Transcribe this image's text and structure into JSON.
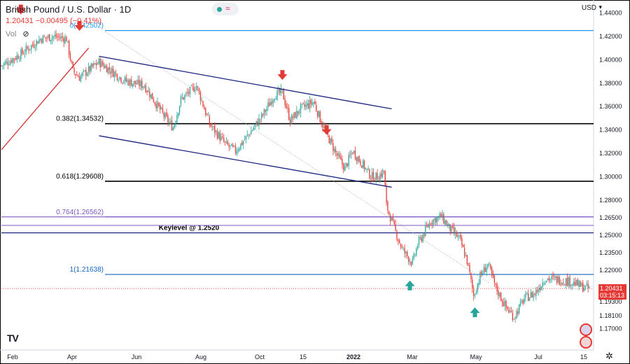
{
  "header": {
    "title": "British Pound / U.S. Dollar",
    "interval": "1D",
    "quote_line": "1.20431  −0.00495 (−0.41%)",
    "vol_label": "Vol",
    "currency": "USD"
  },
  "price_tag": {
    "price": "1.20431",
    "countdown": "03:15:13"
  },
  "logo": "TV",
  "colors": {
    "up": "#26a69a",
    "down": "#e53935",
    "fib": "#000000",
    "fib_0": "#2196f3",
    "fib_764": "#7e57c2",
    "fib_1": "#1565c0",
    "keylevel": "#1a237e",
    "channel": "#1a237e",
    "trend": "#d32f2f",
    "marker_down": "#e53935",
    "marker_up": "#26a69a"
  },
  "chart_data": {
    "type": "candlestick",
    "symbol": "GBPUSD",
    "x_ticks": [
      "Feb",
      "Apr",
      "Jun",
      "Aug",
      "Oct",
      "15",
      "2022",
      "Mar",
      "May",
      "Jul",
      "15"
    ],
    "y_ticks": [
      "1.44000",
      "1.42000",
      "1.40000",
      "1.38000",
      "1.36000",
      "1.34000",
      "1.32000",
      "1.30000",
      "1.28000",
      "1.26500",
      "1.25000",
      "1.23500",
      "1.22000",
      "1.19300",
      "1.18100",
      "1.17000"
    ],
    "levels": [
      {
        "label": "0(1.42502)",
        "price": 1.42502,
        "color_key": "fib_0"
      },
      {
        "label": "0.382(1.34532)",
        "price": 1.34532,
        "color_key": "fib"
      },
      {
        "label": "0.618(1.29608)",
        "price": 1.29608,
        "color_key": "fib"
      },
      {
        "label": "0.764(1.26562)",
        "price": 1.26562,
        "color_key": "fib_764"
      },
      {
        "label": "Keylevel @ 1.2520",
        "price": 1.252,
        "color_key": "keylevel"
      },
      {
        "label": "1(1.21638)",
        "price": 1.21638,
        "color_key": "fib_1"
      }
    ],
    "last_price": 1.20431,
    "close_path": [
      [
        0,
        1.395
      ],
      [
        15,
        1.405
      ],
      [
        30,
        1.418
      ],
      [
        40,
        1.42
      ],
      [
        50,
        1.418
      ],
      [
        55,
        1.39
      ],
      [
        60,
        1.385
      ],
      [
        75,
        1.398
      ],
      [
        95,
        1.382
      ],
      [
        110,
        1.378
      ],
      [
        125,
        1.352
      ],
      [
        132,
        1.342
      ],
      [
        138,
        1.366
      ],
      [
        150,
        1.378
      ],
      [
        160,
        1.345
      ],
      [
        172,
        1.328
      ],
      [
        180,
        1.322
      ],
      [
        190,
        1.336
      ],
      [
        200,
        1.351
      ],
      [
        210,
        1.37
      ],
      [
        216,
        1.372
      ],
      [
        222,
        1.348
      ],
      [
        230,
        1.358
      ],
      [
        240,
        1.364
      ],
      [
        248,
        1.341
      ],
      [
        252,
        1.332
      ],
      [
        258,
        1.318
      ],
      [
        264,
        1.307
      ],
      [
        270,
        1.322
      ],
      [
        278,
        1.31
      ],
      [
        284,
        1.3
      ],
      [
        290,
        1.3
      ],
      [
        294,
        1.305
      ],
      [
        296,
        1.275
      ],
      [
        302,
        1.256
      ],
      [
        308,
        1.238
      ],
      [
        316,
        1.226
      ],
      [
        320,
        1.242
      ],
      [
        330,
        1.262
      ],
      [
        338,
        1.266
      ],
      [
        345,
        1.255
      ],
      [
        352,
        1.247
      ],
      [
        358,
        1.228
      ],
      [
        363,
        1.198
      ],
      [
        368,
        1.215
      ],
      [
        374,
        1.225
      ],
      [
        380,
        1.205
      ],
      [
        388,
        1.188
      ],
      [
        394,
        1.18
      ],
      [
        402,
        1.196
      ],
      [
        410,
        1.2
      ],
      [
        418,
        1.213
      ],
      [
        428,
        1.212
      ],
      [
        438,
        1.21
      ],
      [
        446,
        1.206
      ],
      [
        452,
        1.204
      ]
    ],
    "candles_total": 453,
    "markers": [
      {
        "dir": "down",
        "day": 15,
        "price": 1.44
      },
      {
        "dir": "down",
        "day": 60,
        "price": 1.426
      },
      {
        "dir": "down",
        "day": 216,
        "price": 1.384
      },
      {
        "dir": "down",
        "day": 250,
        "price": 1.337
      },
      {
        "dir": "up",
        "day": 314,
        "price": 1.21
      },
      {
        "dir": "up",
        "day": 364,
        "price": 1.187
      }
    ],
    "trendlines": [
      {
        "color_key": "trend",
        "from": [
          0,
          1.323
        ],
        "to": [
          67,
          1.41
        ]
      },
      {
        "color_key": "channel",
        "from": [
          75,
          1.403
        ],
        "to": [
          300,
          1.358
        ]
      },
      {
        "color_key": "channel",
        "from": [
          75,
          1.335
        ],
        "to": [
          300,
          1.291
        ]
      }
    ]
  }
}
